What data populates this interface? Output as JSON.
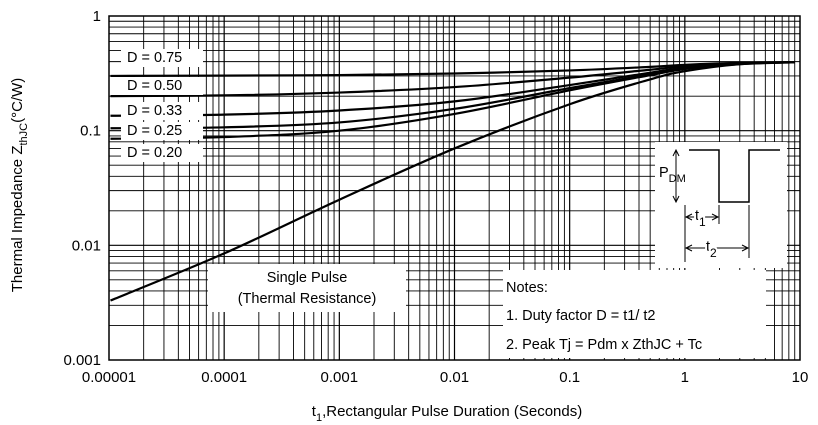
{
  "chart_data": {
    "type": "line",
    "x_scale": "log",
    "y_scale": "log",
    "xlim": [
      1e-05,
      10
    ],
    "ylim": [
      0.001,
      1
    ],
    "xlabel": {
      "main": "t",
      "sub": "1",
      "rest": ",Rectangular Pulse Duration (Seconds)"
    },
    "ylabel": {
      "main": "Thermal Impedance Z",
      "sub": "thJC",
      "rest": "(°C/W)"
    },
    "x_ticks": [
      {
        "value": 1e-05,
        "label": "0.00001"
      },
      {
        "value": 0.0001,
        "label": "0.0001"
      },
      {
        "value": 0.001,
        "label": "0.001"
      },
      {
        "value": 0.01,
        "label": "0.01"
      },
      {
        "value": 0.1,
        "label": "0.1"
      },
      {
        "value": 1,
        "label": "1"
      },
      {
        "value": 10,
        "label": "10"
      }
    ],
    "y_ticks": [
      {
        "value": 1,
        "label": "1"
      },
      {
        "value": 0.1,
        "label": "0.1"
      },
      {
        "value": 0.01,
        "label": "0.01"
      },
      {
        "value": 0.001,
        "label": "0.001"
      }
    ],
    "grid": true,
    "series": [
      {
        "name": "D = 0.75",
        "x": [
          1.03e-05,
          0.0001,
          0.001,
          0.01,
          0.1,
          0.5,
          1,
          3,
          9
        ],
        "y": [
          0.3,
          0.302,
          0.305,
          0.315,
          0.335,
          0.36,
          0.375,
          0.39,
          0.395
        ]
      },
      {
        "name": "D = 0.50",
        "x": [
          1.03e-05,
          0.0001,
          0.001,
          0.01,
          0.1,
          0.5,
          1,
          3,
          9
        ],
        "y": [
          0.2,
          0.203,
          0.215,
          0.24,
          0.29,
          0.34,
          0.365,
          0.39,
          0.395
        ]
      },
      {
        "name": "D = 0.33",
        "x": [
          1.03e-05,
          0.0001,
          0.001,
          0.01,
          0.1,
          0.5,
          1,
          3,
          9
        ],
        "y": [
          0.135,
          0.138,
          0.15,
          0.18,
          0.25,
          0.32,
          0.355,
          0.385,
          0.395
        ]
      },
      {
        "name": "D = 0.25",
        "x": [
          1.03e-05,
          0.0001,
          0.001,
          0.01,
          0.1,
          0.5,
          1,
          3,
          9
        ],
        "y": [
          0.105,
          0.107,
          0.118,
          0.155,
          0.235,
          0.31,
          0.35,
          0.385,
          0.395
        ]
      },
      {
        "name": "D = 0.20",
        "x": [
          1.03e-05,
          0.0001,
          0.001,
          0.01,
          0.1,
          0.5,
          1,
          3,
          9
        ],
        "y": [
          0.085,
          0.088,
          0.1,
          0.14,
          0.225,
          0.305,
          0.345,
          0.38,
          0.395
        ]
      },
      {
        "name": "Single Pulse",
        "x": [
          1.03e-05,
          0.0001,
          0.001,
          0.01,
          0.1,
          0.5,
          1,
          3,
          9
        ],
        "y": [
          0.0033,
          0.0085,
          0.025,
          0.07,
          0.17,
          0.28,
          0.33,
          0.38,
          0.395
        ]
      }
    ],
    "series_labels": [
      "D = 0.75",
      "D = 0.50",
      "D = 0.33",
      "D = 0.25",
      "D = 0.20"
    ],
    "annotations": {
      "single_pulse": [
        "Single Pulse",
        "(Thermal Resistance)"
      ],
      "notes_title": "Notes:",
      "notes": [
        "1. Duty factor D = t1/ t2",
        "2. Peak Tj = Pdm x ZthJC + Tc"
      ],
      "inset": {
        "p_main": "P",
        "p_sub": "DM",
        "t1_main": "t",
        "t1_sub": "1",
        "t2_main": "t",
        "t2_sub": "2"
      }
    }
  }
}
